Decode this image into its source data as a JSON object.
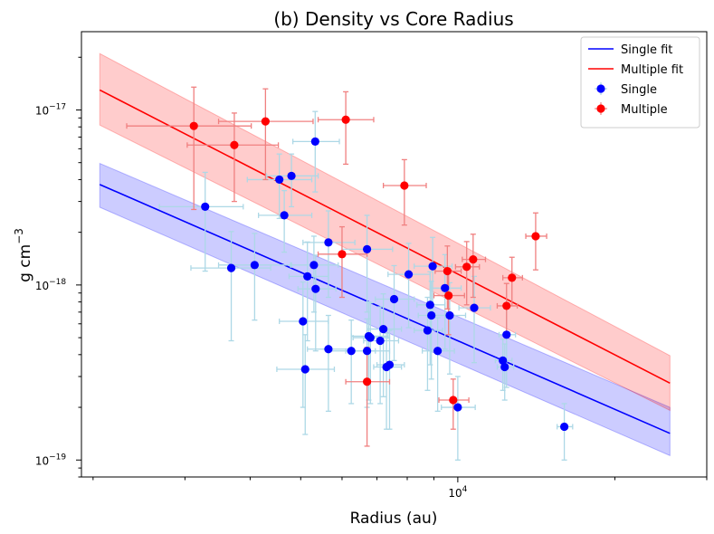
{
  "chart_data": {
    "type": "scatter",
    "title": "(b) Density vs Core Radius",
    "xlabel": "Radius (au)",
    "ylabel": "g cm",
    "ylabel_superscript": "−3",
    "xscale": "log",
    "yscale": "log",
    "xlim": [
      1900,
      30000
    ],
    "ylim": [
      8e-20,
      2.8e-17
    ],
    "xticks": [
      {
        "value": 10000,
        "base": "10",
        "exp": "4"
      }
    ],
    "yticks": [
      {
        "value": 1e-19,
        "base": "10",
        "exp": "−19"
      },
      {
        "value": 1e-18,
        "base": "10",
        "exp": "−18"
      },
      {
        "value": 1e-17,
        "base": "10",
        "exp": "−17"
      }
    ],
    "legend_position": "top-right",
    "legend": [
      {
        "label": "Single fit",
        "kind": "line",
        "color": "#0000ff"
      },
      {
        "label": "Multiple fit",
        "kind": "line",
        "color": "#ff0000"
      },
      {
        "label": "Single",
        "kind": "marker",
        "color": "#0000ff",
        "err_color": "#add8e6"
      },
      {
        "label": "Multiple",
        "kind": "marker",
        "color": "#ff0000",
        "err_color": "#f08080"
      }
    ],
    "series": [
      {
        "name": "Single",
        "color": "#0000ff",
        "err_color": "#add8e6",
        "points": [
          {
            "x": 3280,
            "y": 2.8e-18,
            "xerr": [
              600,
              600
            ],
            "yerr": [
              1.6e-18,
              1.6e-18
            ]
          },
          {
            "x": 3680,
            "y": 1.25e-18,
            "xerr": [
              600,
              700
            ],
            "yerr": [
              7.7e-19,
              7.7e-19
            ]
          },
          {
            "x": 4080,
            "y": 1.3e-18,
            "xerr": [
              600,
              700
            ],
            "yerr": [
              6.7e-19,
              6.7e-19
            ]
          },
          {
            "x": 4550,
            "y": 4e-18,
            "xerr": [
              600,
              700
            ],
            "yerr": [
              1.6e-18,
              1.6e-18
            ]
          },
          {
            "x": 4650,
            "y": 2.5e-18,
            "xerr": [
              500,
              600
            ],
            "yerr": [
              9.6e-19,
              9.6e-19
            ]
          },
          {
            "x": 4800,
            "y": 4.2e-18,
            "xerr": [
              500,
              600
            ],
            "yerr": [
              1.4e-18,
              1.4e-18
            ]
          },
          {
            "x": 5050,
            "y": 6.2e-19,
            "xerr": [
              500,
              600
            ],
            "yerr": [
              4.2e-19,
              4.2e-19
            ]
          },
          {
            "x": 5150,
            "y": 1.12e-18,
            "xerr": [
              400,
              500
            ],
            "yerr": [
              6.4e-19,
              6.4e-19
            ]
          },
          {
            "x": 5300,
            "y": 1.3e-18,
            "xerr": [
              500,
              600
            ],
            "yerr": [
              6e-19,
              6e-19
            ]
          },
          {
            "x": 5330,
            "y": 6.6e-18,
            "xerr": [
              500,
              600
            ],
            "yerr": [
              3.2e-18,
              3.2e-18
            ]
          },
          {
            "x": 5340,
            "y": 9.5e-19,
            "xerr": [
              400,
              500
            ],
            "yerr": [
              5.3e-19,
              5.3e-19
            ]
          },
          {
            "x": 5100,
            "y": 3.3e-19,
            "xerr": [
              600,
              700
            ],
            "yerr": [
              1.9e-19,
              1.9e-19
            ]
          },
          {
            "x": 5650,
            "y": 4.3e-19,
            "xerr": [
              500,
              600
            ],
            "yerr": [
              2.4e-19,
              2.4e-19
            ]
          },
          {
            "x": 5650,
            "y": 1.75e-18,
            "xerr": [
              600,
              700
            ],
            "yerr": [
              9e-19,
              9e-19
            ]
          },
          {
            "x": 6250,
            "y": 4.2e-19,
            "xerr": [
              600,
              700
            ],
            "yerr": [
              2.1e-19,
              2.1e-19
            ]
          },
          {
            "x": 6700,
            "y": 4.2e-19,
            "xerr": [
              600,
              700
            ],
            "yerr": [
              2.2e-19,
              2.2e-19
            ]
          },
          {
            "x": 6700,
            "y": 1.6e-18,
            "xerr": [
              700,
              800
            ],
            "yerr": [
              9e-19,
              9e-19
            ]
          },
          {
            "x": 6750,
            "y": 5.1e-19,
            "xerr": [
              500,
              600
            ],
            "yerr": [
              2.9e-19,
              2.9e-19
            ]
          },
          {
            "x": 6800,
            "y": 5e-19,
            "xerr": [
              500,
              600
            ],
            "yerr": [
              2.9e-19,
              2.9e-19
            ]
          },
          {
            "x": 7100,
            "y": 4.8e-19,
            "xerr": [
              500,
              600
            ],
            "yerr": [
              2.7e-19,
              2.7e-19
            ]
          },
          {
            "x": 7200,
            "y": 5.6e-19,
            "xerr": [
              500,
              600
            ],
            "yerr": [
              3.3e-19,
              3.3e-19
            ]
          },
          {
            "x": 7300,
            "y": 3.4e-19,
            "xerr": [
              400,
              500
            ],
            "yerr": [
              1.9e-19,
              1.9e-19
            ]
          },
          {
            "x": 7400,
            "y": 3.5e-19,
            "xerr": [
              400,
              500
            ],
            "yerr": [
              2e-19,
              2e-19
            ]
          },
          {
            "x": 7550,
            "y": 8.3e-19,
            "xerr": [
              600,
              700
            ],
            "yerr": [
              4.6e-19,
              4.6e-19
            ]
          },
          {
            "x": 8050,
            "y": 1.15e-18,
            "xerr": [
              700,
              800
            ],
            "yerr": [
              5.8e-19,
              5.8e-19
            ]
          },
          {
            "x": 8750,
            "y": 5.5e-19,
            "xerr": [
              500,
              600
            ],
            "yerr": [
              3e-19,
              3e-19
            ]
          },
          {
            "x": 8850,
            "y": 7.7e-19,
            "xerr": [
              500,
              600
            ],
            "yerr": [
              4.2e-19,
              4.2e-19
            ]
          },
          {
            "x": 8900,
            "y": 6.7e-19,
            "xerr": [
              500,
              600
            ],
            "yerr": [
              3.8e-19,
              3.8e-19
            ]
          },
          {
            "x": 8950,
            "y": 1.28e-18,
            "xerr": [
              700,
              800
            ],
            "yerr": [
              5.9e-19,
              5.9e-19
            ]
          },
          {
            "x": 9150,
            "y": 4.2e-19,
            "xerr": [
              600,
              700
            ],
            "yerr": [
              2.3e-19,
              2.3e-19
            ]
          },
          {
            "x": 9450,
            "y": 9.6e-19,
            "xerr": [
              600,
              700
            ],
            "yerr": [
              5.3e-19,
              5.3e-19
            ]
          },
          {
            "x": 9650,
            "y": 6.7e-19,
            "xerr": [
              600,
              700
            ],
            "yerr": [
              3.6e-19,
              3.6e-19
            ]
          },
          {
            "x": 10000,
            "y": 2e-19,
            "xerr": [
              700,
              800
            ],
            "yerr": [
              1e-19,
              1e-19
            ]
          },
          {
            "x": 10750,
            "y": 7.4e-19,
            "xerr": [
              700,
              800
            ],
            "yerr": [
              3.8e-19,
              3.8e-19
            ]
          },
          {
            "x": 12200,
            "y": 3.7e-19,
            "xerr": [
              400,
              500
            ],
            "yerr": [
              1.2e-19,
              1.2e-19
            ]
          },
          {
            "x": 12300,
            "y": 3.4e-19,
            "xerr": [
              400,
              500
            ],
            "yerr": [
              1.2e-19,
              1.2e-19
            ]
          },
          {
            "x": 12400,
            "y": 5.2e-19,
            "xerr": [
              400,
              500
            ],
            "yerr": [
              2.6e-19,
              2.6e-19
            ]
          },
          {
            "x": 16000,
            "y": 1.55e-19,
            "xerr": [
              500,
              600
            ],
            "yerr": [
              5.5e-20,
              5.5e-20
            ]
          }
        ]
      },
      {
        "name": "Multiple",
        "color": "#ff0000",
        "err_color": "#f08080",
        "points": [
          {
            "x": 3120,
            "y": 8.1e-18,
            "xerr": [
              800,
              900
            ],
            "yerr": [
              5.4e-18,
              5.4e-18
            ]
          },
          {
            "x": 3730,
            "y": 6.3e-18,
            "xerr": [
              700,
              800
            ],
            "yerr": [
              3.3e-18,
              3.3e-18
            ]
          },
          {
            "x": 4280,
            "y": 8.6e-18,
            "xerr": [
              800,
              1000
            ],
            "yerr": [
              4.6e-18,
              4.6e-18
            ]
          },
          {
            "x": 6000,
            "y": 1.5e-18,
            "xerr": [
              600,
              700
            ],
            "yerr": [
              6.5e-19,
              6.5e-19
            ]
          },
          {
            "x": 6100,
            "y": 8.8e-18,
            "xerr": [
              700,
              800
            ],
            "yerr": [
              3.9e-18,
              3.9e-18
            ]
          },
          {
            "x": 6700,
            "y": 2.8e-19,
            "xerr": [
              600,
              700
            ],
            "yerr": [
              1.6e-19,
              1.6e-19
            ]
          },
          {
            "x": 7900,
            "y": 3.7e-18,
            "xerr": [
              700,
              800
            ],
            "yerr": [
              1.5e-18,
              1.5e-18
            ]
          },
          {
            "x": 9550,
            "y": 1.2e-18,
            "xerr": [
              500,
              600
            ],
            "yerr": [
              4.7e-19,
              4.7e-19
            ]
          },
          {
            "x": 9600,
            "y": 8.7e-19,
            "xerr": [
              600,
              700
            ],
            "yerr": [
              3.5e-19,
              3.5e-19
            ]
          },
          {
            "x": 9800,
            "y": 2.2e-19,
            "xerr": [
              600,
              700
            ],
            "yerr": [
              7e-20,
              7e-20
            ]
          },
          {
            "x": 10400,
            "y": 1.27e-18,
            "xerr": [
              500,
              600
            ],
            "yerr": [
              5e-19,
              5e-19
            ]
          },
          {
            "x": 10700,
            "y": 1.4e-18,
            "xerr": [
              500,
              600
            ],
            "yerr": [
              5.5e-19,
              5.5e-19
            ]
          },
          {
            "x": 12400,
            "y": 7.6e-19,
            "xerr": [
              500,
              600
            ],
            "yerr": [
              2.6e-19,
              2.6e-19
            ]
          },
          {
            "x": 12700,
            "y": 1.1e-18,
            "xerr": [
              500,
              600
            ],
            "yerr": [
              3.4e-19,
              3.4e-19
            ]
          },
          {
            "x": 14100,
            "y": 1.9e-18,
            "xerr": [
              600,
              700
            ],
            "yerr": [
              6.8e-19,
              6.8e-19
            ]
          }
        ]
      }
    ],
    "fits": [
      {
        "name": "Single fit",
        "color": "#0000ff",
        "x": [
          2060,
          25500
        ],
        "y": [
          3.75e-18,
          1.42e-19
        ],
        "band_upper": [
          4.95e-18,
          2e-19
        ],
        "band_lower": [
          2.78e-18,
          1.06e-19
        ]
      },
      {
        "name": "Multiple fit",
        "color": "#ff0000",
        "x": [
          2060,
          25500
        ],
        "y": [
          1.3e-17,
          2.75e-19
        ],
        "band_upper": [
          2.1e-17,
          3.95e-19
        ],
        "band_lower": [
          8.2e-18,
          1.92e-19
        ]
      }
    ]
  }
}
